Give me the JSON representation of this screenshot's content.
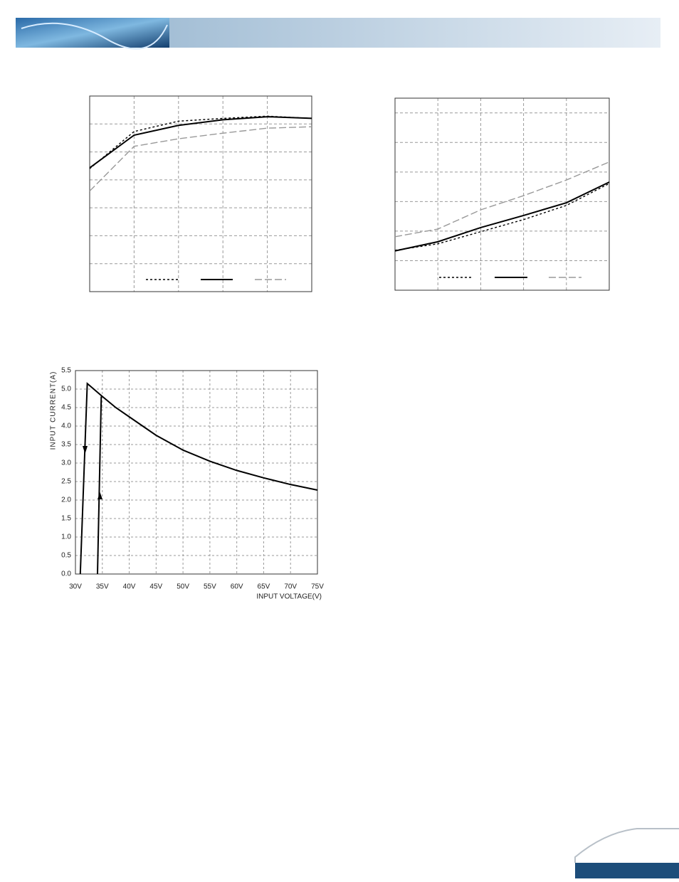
{
  "chart_data": [
    {
      "type": "line",
      "xlim": [
        0,
        5
      ],
      "ylim": [
        0,
        7
      ],
      "x": [
        0,
        1,
        2,
        3,
        4,
        5
      ],
      "grid": true,
      "series": [
        {
          "color": "#000000",
          "dash": "dotted",
          "values": [
            4.4,
            5.73,
            6.1,
            6.2,
            6.28,
            6.2
          ]
        },
        {
          "color": "#000000",
          "dash": "solid",
          "values": [
            4.43,
            5.6,
            5.95,
            6.15,
            6.26,
            6.2
          ]
        },
        {
          "color": "#999999",
          "dash": "dashed",
          "values": [
            3.6,
            5.2,
            5.47,
            5.67,
            5.85,
            5.9
          ]
        }
      ]
    },
    {
      "type": "line",
      "xlim": [
        0,
        5
      ],
      "ylim": [
        0,
        6.5
      ],
      "x": [
        0,
        1,
        2,
        3,
        4,
        5
      ],
      "grid": true,
      "series": [
        {
          "color": "#000000",
          "dash": "dotted",
          "values": [
            1.35,
            1.57,
            1.98,
            2.39,
            2.87,
            3.61
          ]
        },
        {
          "color": "#000000",
          "dash": "solid",
          "values": [
            1.33,
            1.64,
            2.12,
            2.53,
            2.96,
            3.66
          ]
        },
        {
          "color": "#999999",
          "dash": "dashed",
          "values": [
            1.81,
            2.07,
            2.72,
            3.2,
            3.73,
            4.34
          ]
        }
      ]
    },
    {
      "type": "line",
      "xlabel": "INPUT VOLTAGE(V)",
      "ylabel": "INPUT CURRENT(A)",
      "xlim": [
        30,
        75
      ],
      "ylim": [
        0,
        5.5
      ],
      "grid": true,
      "xticks": [
        {
          "value": 30,
          "label": "30V"
        },
        {
          "value": 35,
          "label": "35V"
        },
        {
          "value": 40,
          "label": "40V"
        },
        {
          "value": 45,
          "label": "45V"
        },
        {
          "value": 50,
          "label": "50V"
        },
        {
          "value": 55,
          "label": "55V"
        },
        {
          "value": 60,
          "label": "60V"
        },
        {
          "value": 65,
          "label": "65V"
        },
        {
          "value": 70,
          "label": "70V"
        },
        {
          "value": 75,
          "label": "75V"
        }
      ],
      "yticks": [
        {
          "value": 0,
          "label": "0.0"
        },
        0.5,
        {
          "value": 1,
          "label": "1.0"
        },
        1.5,
        {
          "value": 2,
          "label": "2.0"
        },
        2.5,
        {
          "value": 3,
          "label": "3.0"
        },
        3.5,
        {
          "value": 4,
          "label": "4.0"
        },
        4.5,
        {
          "value": 5,
          "label": "5.0"
        },
        5.5
      ],
      "series": [
        {
          "color": "#000000",
          "dash": "solid",
          "x": [
            30.9,
            32.2,
            33,
            35,
            37.5,
            40,
            45,
            50,
            55,
            60,
            65,
            70,
            75
          ],
          "values": [
            0,
            5.15,
            5.05,
            4.8,
            4.5,
            4.25,
            3.75,
            3.35,
            3.05,
            2.8,
            2.6,
            2.42,
            2.27
          ]
        },
        {
          "color": "#000000",
          "dash": "solid",
          "x": [
            34.1,
            34.8
          ],
          "values": [
            0,
            4.8
          ]
        }
      ]
    }
  ]
}
